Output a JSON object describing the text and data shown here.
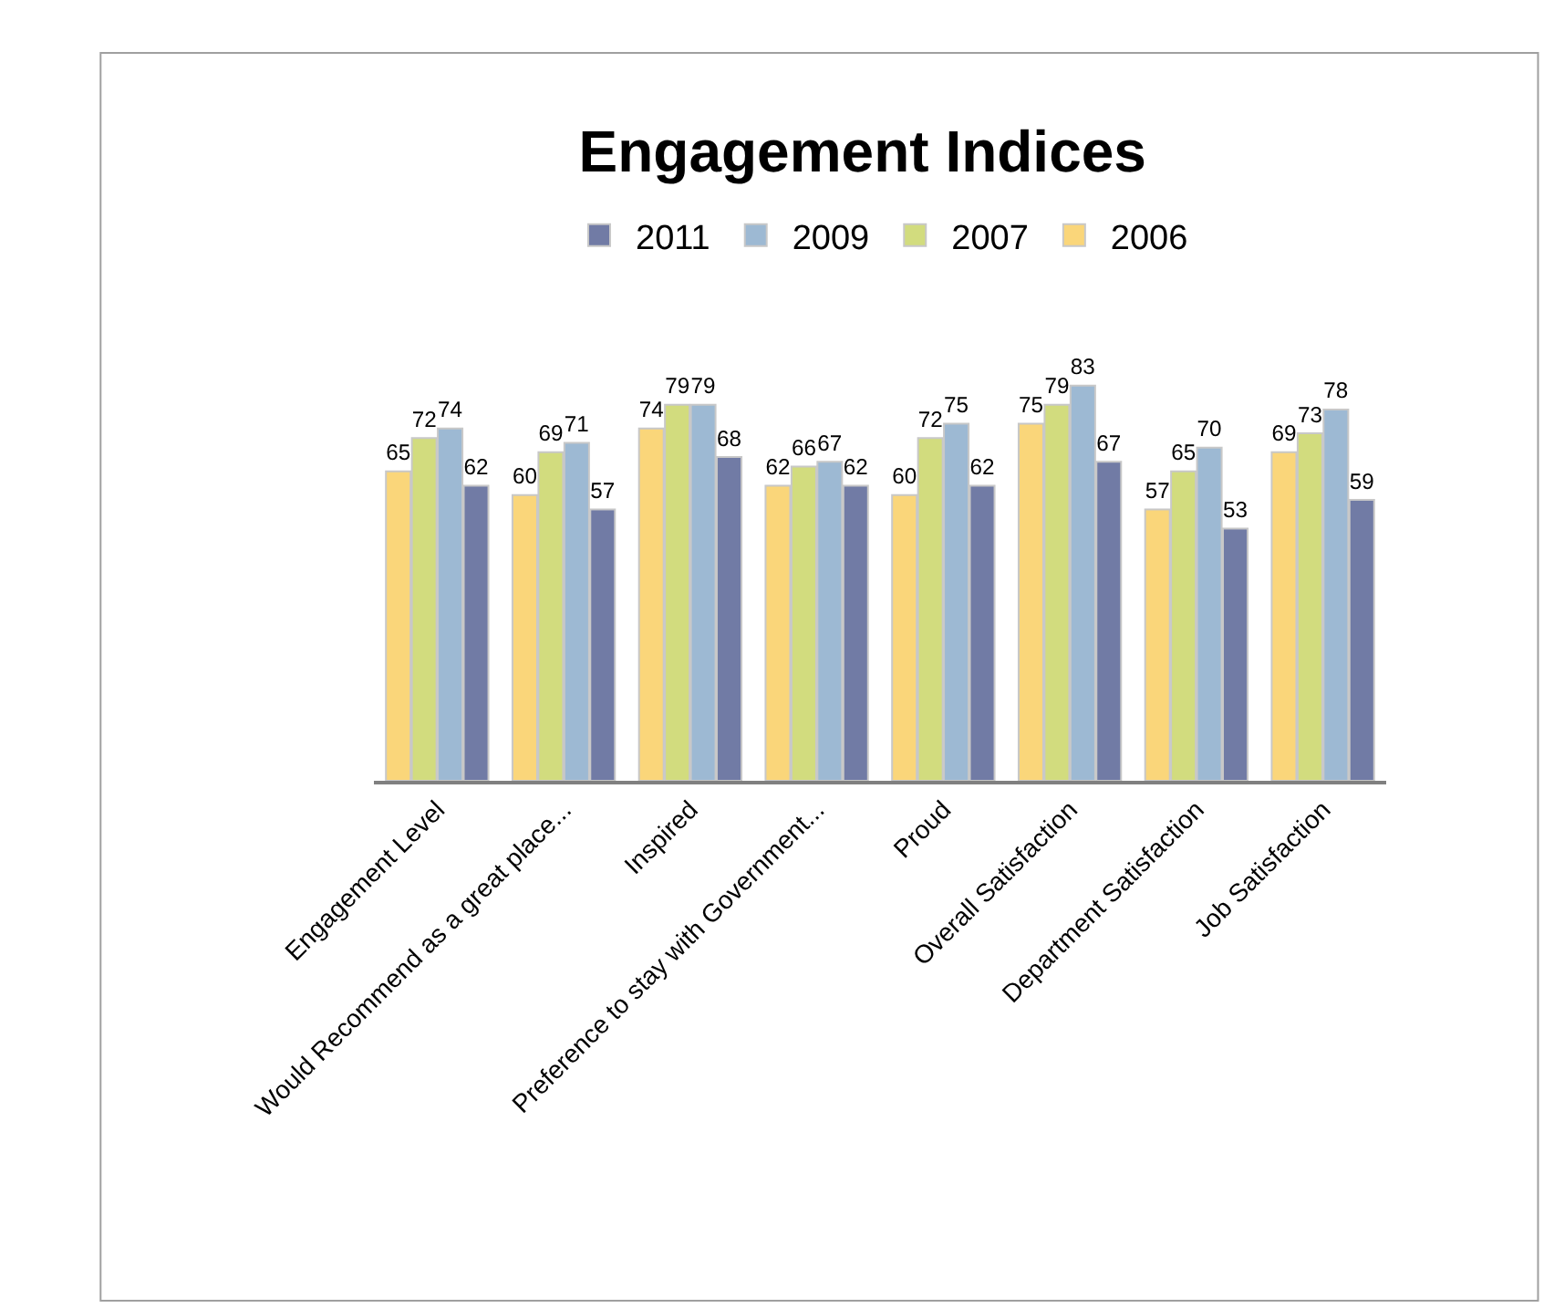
{
  "chart_data": {
    "type": "bar",
    "title": "Engagement Indices",
    "categories": [
      "Engagement Level",
      "Would Recommend as a great place...",
      "Inspired",
      "Preference to stay with Government...",
      "Proud",
      "Overall Satisfaction",
      "Department Satisfaction",
      "Job Satisfaction"
    ],
    "series": [
      {
        "name": "2006",
        "color": "#fad67a",
        "values": [
          65,
          60,
          74,
          62,
          60,
          75,
          57,
          69
        ]
      },
      {
        "name": "2007",
        "color": "#d2dc7e",
        "values": [
          72,
          69,
          79,
          66,
          72,
          79,
          65,
          73
        ]
      },
      {
        "name": "2009",
        "color": "#9db9d3",
        "values": [
          74,
          71,
          79,
          67,
          75,
          83,
          70,
          78
        ]
      },
      {
        "name": "2011",
        "color": "#717ba5",
        "values": [
          62,
          57,
          68,
          62,
          62,
          67,
          53,
          59
        ]
      }
    ],
    "data_labels": true,
    "legend": "top",
    "tick_labels": "x"
  }
}
